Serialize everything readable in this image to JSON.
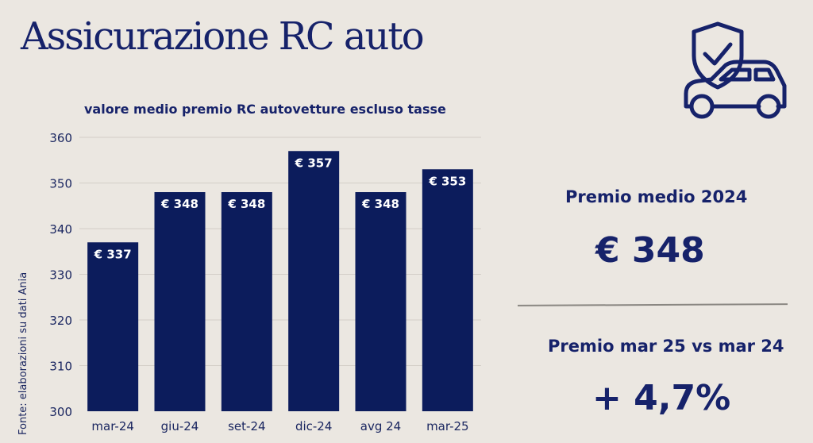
{
  "title": "Assicurazione RC auto",
  "source_note": "Fonte: elaborazioni su dati Ania",
  "stats": {
    "avg_label": "Premio medio 2024",
    "avg_value": "€ 348",
    "change_label": "Premio mar 25 vs mar 24",
    "change_value": "+ 4,7%"
  },
  "icon": "car-shield-check-icon",
  "colors": {
    "bar": "#0c1c5c",
    "text": "#16226a",
    "background": "#ebe7e1"
  },
  "chart_data": {
    "type": "bar",
    "title": "valore medio premio RC autovetture escluso tasse",
    "categories": [
      "mar-24",
      "giu-24",
      "set-24",
      "dic-24",
      "avg 24",
      "mar-25"
    ],
    "values": [
      337,
      348,
      348,
      357,
      348,
      353
    ],
    "data_labels": [
      "€ 337",
      "€ 348",
      "€ 348",
      "€ 357",
      "€ 348",
      "€ 353"
    ],
    "ylim": [
      300,
      360
    ],
    "yticks": [
      300,
      310,
      320,
      330,
      340,
      350,
      360
    ],
    "grid": true,
    "legend": "none"
  }
}
